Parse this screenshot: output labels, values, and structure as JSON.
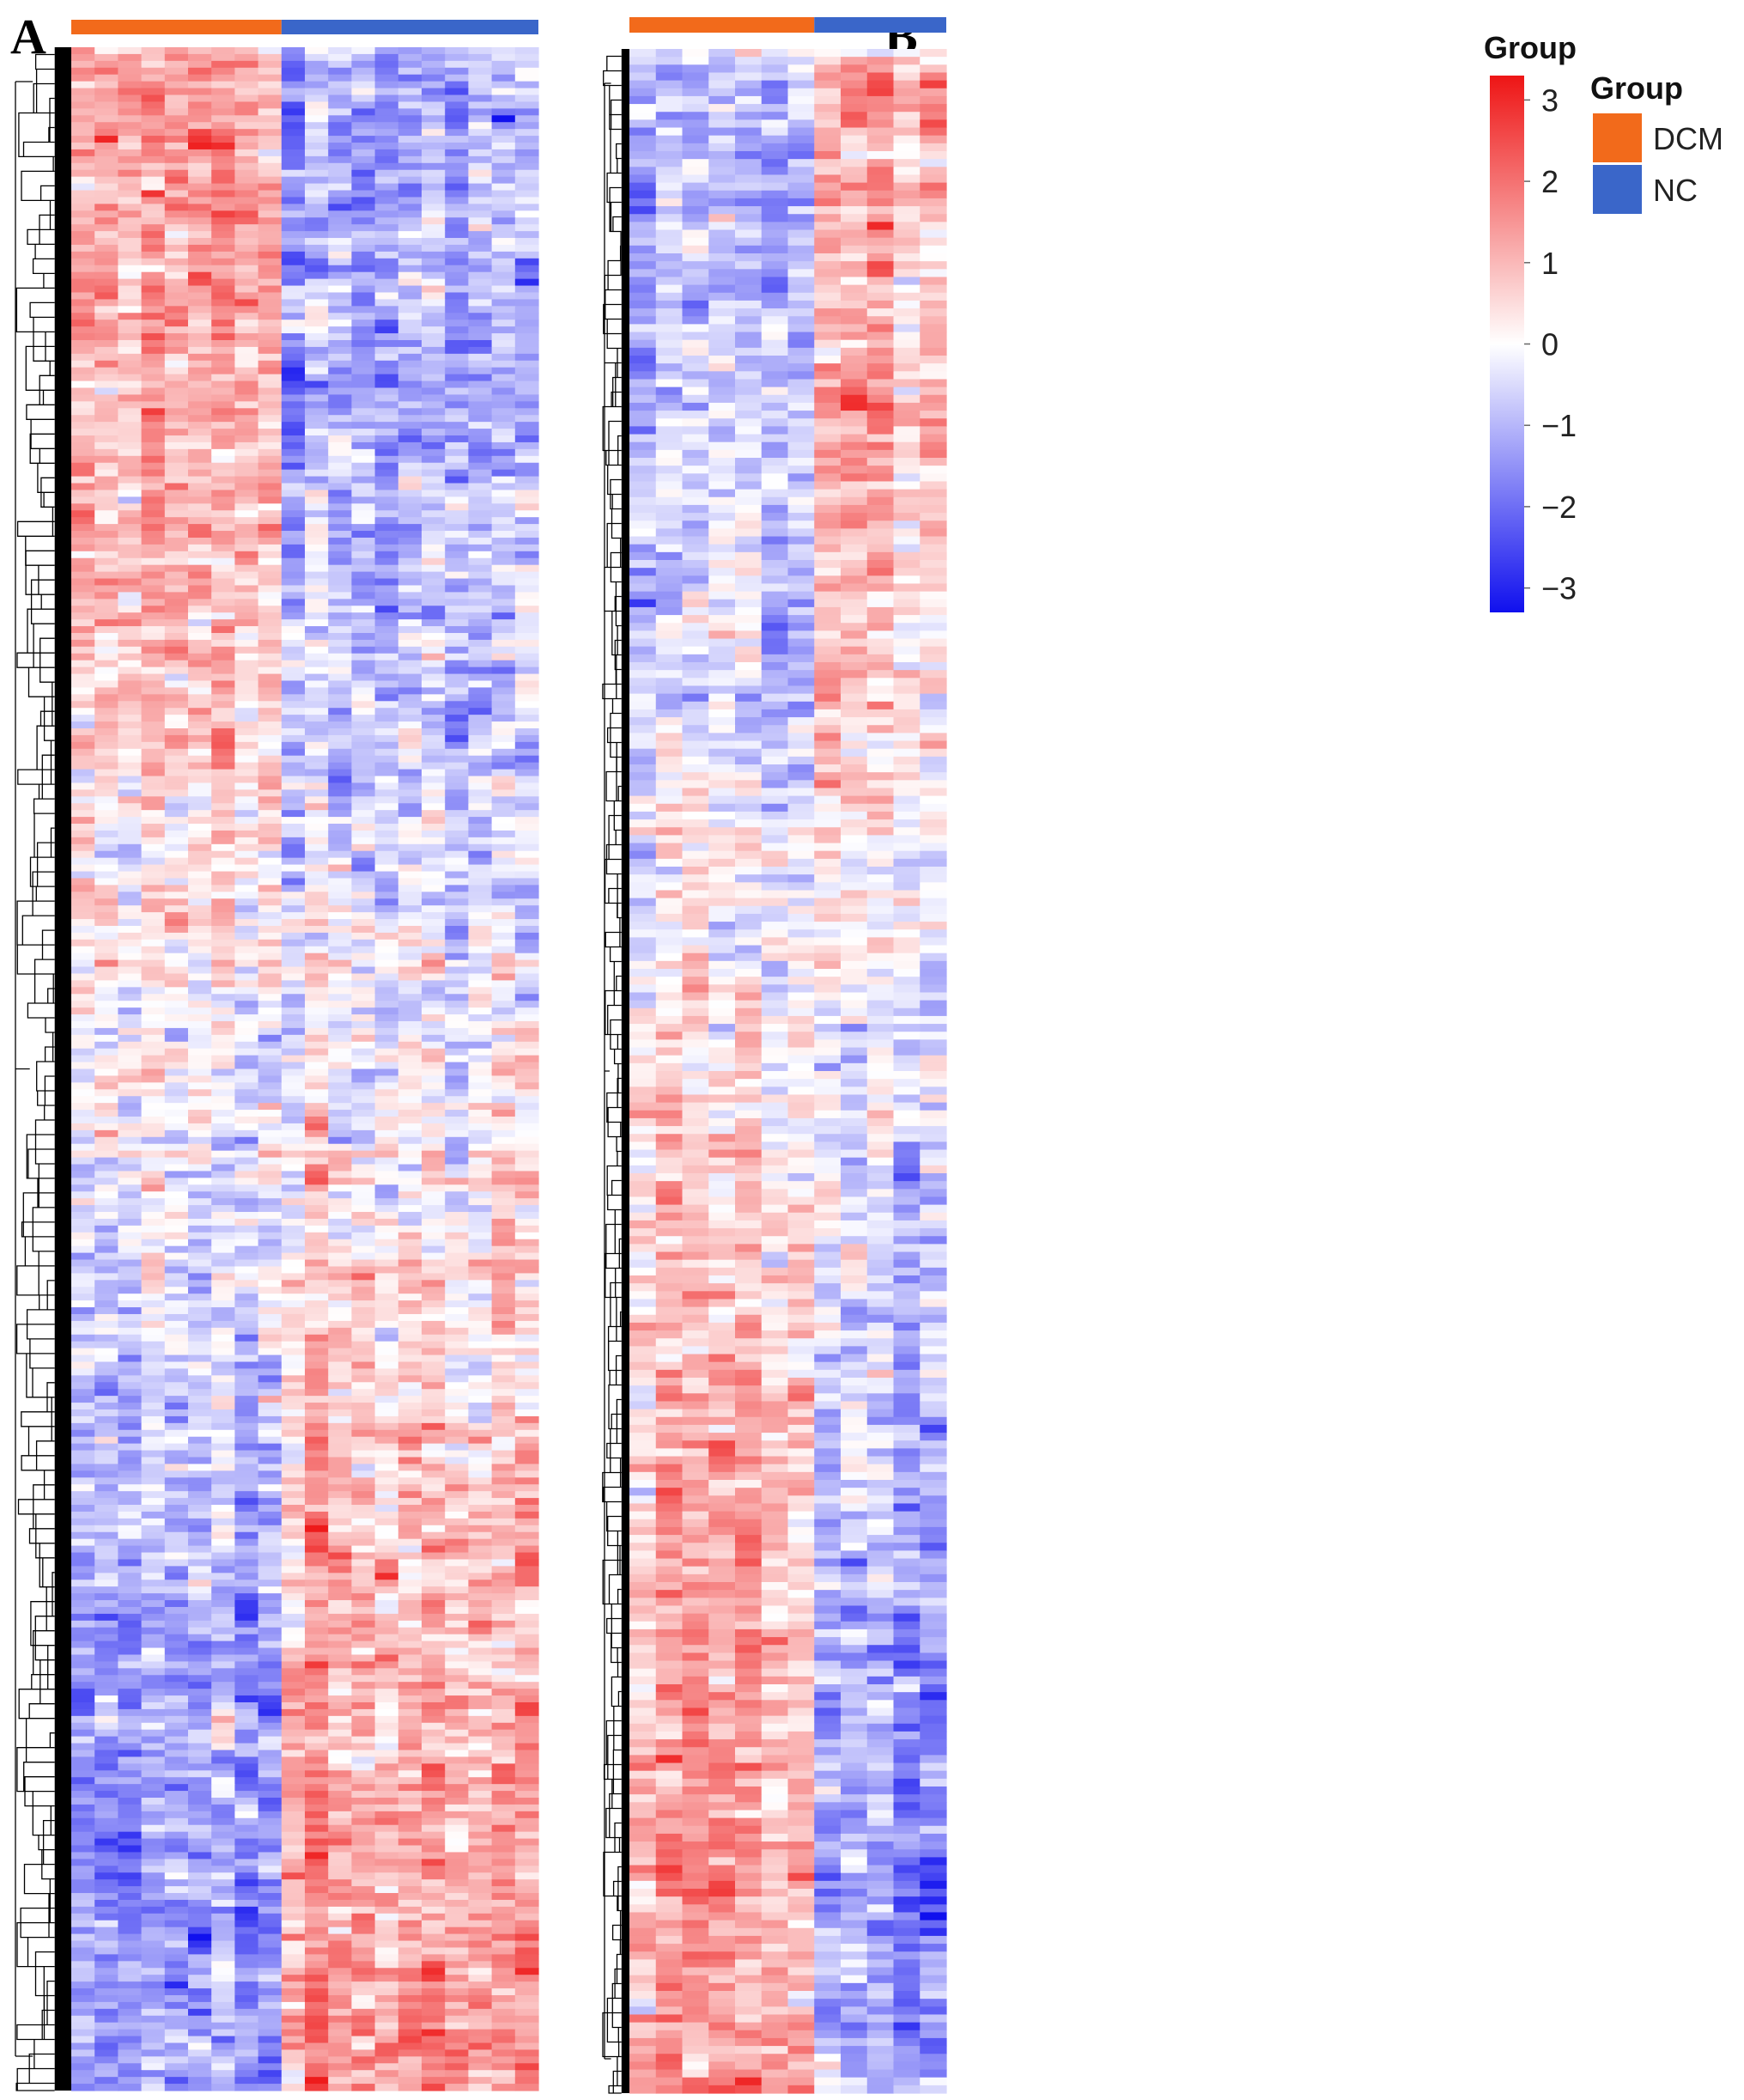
{
  "panels": [
    {
      "label": "A",
      "group_counts": {
        "DCM": 9,
        "NC": 11
      },
      "row_count": 300,
      "pattern": "upper rows higher in DCM, lower rows higher in NC"
    },
    {
      "label": "B",
      "group_counts": {
        "DCM": 7,
        "NC": 5
      },
      "row_count": 260,
      "pattern": "upper rows higher in NC, lower rows higher in DCM"
    }
  ],
  "colorbar": {
    "title": "Group",
    "ticks": [
      "3",
      "2",
      "1",
      "0",
      "−1",
      "−2",
      "−3"
    ],
    "range": [
      -3.3,
      3.3
    ],
    "colors": {
      "low": "#1010ee",
      "mid": "#ffffff",
      "high": "#ee1515"
    }
  },
  "legend": {
    "title": "Group",
    "items": [
      {
        "label": "DCM",
        "color": "#f26a1b"
      },
      {
        "label": "NC",
        "color": "#3a66c9"
      }
    ]
  },
  "chart_data": [
    {
      "type": "heatmap",
      "panel": "A",
      "columns": [
        "DCM",
        "DCM",
        "DCM",
        "DCM",
        "DCM",
        "DCM",
        "DCM",
        "DCM",
        "DCM",
        "NC",
        "NC",
        "NC",
        "NC",
        "NC",
        "NC",
        "NC",
        "NC",
        "NC",
        "NC",
        "NC"
      ],
      "value_range": [
        -3.3,
        3.3
      ],
      "row_dendrogram": true
    },
    {
      "type": "heatmap",
      "panel": "B",
      "columns": [
        "DCM",
        "DCM",
        "DCM",
        "DCM",
        "DCM",
        "DCM",
        "DCM",
        "NC",
        "NC",
        "NC",
        "NC",
        "NC"
      ],
      "value_range": [
        -3.3,
        3.3
      ],
      "row_dendrogram": true
    }
  ]
}
